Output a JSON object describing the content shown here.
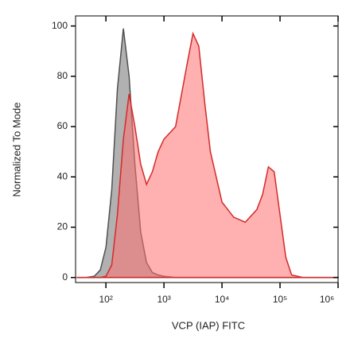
{
  "chart_data": {
    "type": "area",
    "xlabel": "VCP (IAP) FITC",
    "ylabel": "Normalized To Mode",
    "xscale": "log",
    "x": [
      32,
      45,
      63,
      80,
      100,
      126,
      158,
      200,
      251,
      316,
      398,
      501,
      631,
      794,
      1000,
      1585,
      2512,
      3162,
      3981,
      5012,
      6310,
      10000,
      15849,
      25119,
      39811,
      50119,
      63096,
      79433,
      100000,
      125893,
      158489,
      251189,
      1000000
    ],
    "series": [
      {
        "color": "#a9a9a9",
        "stroke": "#505050",
        "values": [
          0,
          0,
          0.5,
          3,
          12,
          35,
          75,
          99,
          80,
          45,
          18,
          6,
          2,
          1,
          0.5,
          0,
          0,
          0,
          0,
          0,
          0,
          0,
          0,
          0,
          0,
          0,
          0,
          0,
          0,
          0,
          0,
          0,
          0
        ]
      },
      {
        "color": "#ff7070",
        "stroke": "#d42a2a",
        "values": [
          0,
          0,
          0,
          0,
          0.5,
          5,
          25,
          55,
          73,
          60,
          45,
          37,
          42,
          50,
          55,
          60,
          85,
          97,
          92,
          70,
          50,
          30,
          24,
          22,
          27,
          33,
          44,
          42,
          25,
          8,
          1,
          0,
          0
        ]
      }
    ],
    "xlim": [
      30,
      1000000
    ],
    "ylim": [
      -2,
      104
    ],
    "xticks": [
      {
        "value": 100,
        "label": "10²"
      },
      {
        "value": 1000,
        "label": "10³"
      },
      {
        "value": 10000,
        "label": "10⁴"
      },
      {
        "value": 100000,
        "label": "10⁵"
      },
      {
        "value": 1000000,
        "label": "10⁶"
      }
    ],
    "yticks": [
      0,
      20,
      40,
      60,
      80,
      100
    ]
  }
}
